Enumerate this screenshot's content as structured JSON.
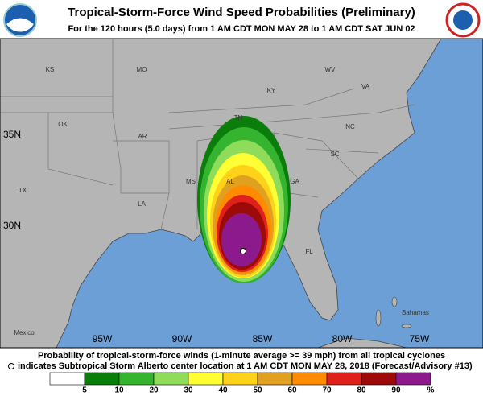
{
  "header": {
    "title": "Tropical-Storm-Force Wind Speed Probabilities (Preliminary)",
    "subtitle": "For the 120 hours (5.0 days) from 1 AM CDT MON MAY 28 to 1 AM CDT SAT JUN 02"
  },
  "map": {
    "state_labels": [
      "KS",
      "MO",
      "WV",
      "KY",
      "VA",
      "OK",
      "TN",
      "NC",
      "AR",
      "SC",
      "TX",
      "MS",
      "AL",
      "GA",
      "LA",
      "FL"
    ],
    "place_labels": [
      "Mexico",
      "Bahamas"
    ],
    "lon_labels": [
      "95W",
      "90W",
      "85W",
      "80W",
      "75W"
    ],
    "lat_labels": [
      "35N",
      "30N"
    ]
  },
  "footer": {
    "line1": "Probability of tropical-storm-force winds (1-minute average >= 39 mph) from all tropical cyclones",
    "line2": "indicates Subtropical Storm Alberto center location at 1 AM CDT MON MAY 28, 2018 (Forecast/Advisory #13)"
  },
  "legend": {
    "colors": [
      "#ffffff",
      "#0a7d0a",
      "#35b52f",
      "#8fdc5a",
      "#ffff33",
      "#ffd21a",
      "#e0a020",
      "#ff8c00",
      "#e0201a",
      "#9c0a0a",
      "#8c1a8c"
    ],
    "labels": [
      5,
      10,
      20,
      30,
      40,
      50,
      60,
      70,
      80,
      90,
      "%"
    ]
  }
}
